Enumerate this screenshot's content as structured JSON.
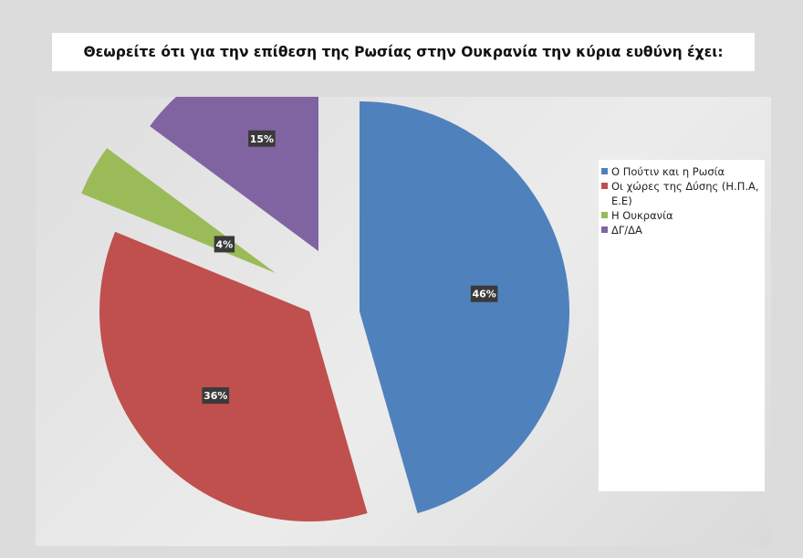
{
  "chart_data": {
    "type": "pie",
    "title": "Θεωρείτε ότι για την επίθεση της Ρωσίας στην Ουκρανία την κύρια ευθύνη έχει:",
    "slices": [
      {
        "label": "Ο Πούτιν και η Ρωσία",
        "value": 46,
        "display": "46%",
        "color": "#4f81bd"
      },
      {
        "label": "Οι χώρες της Δύσης (Η.Π.Α, Ε.Ε)",
        "value": 36,
        "display": "36%",
        "color": "#c0504d"
      },
      {
        "label": "Η Ουκρανία",
        "value": 4,
        "display": "4%",
        "color": "#9bbb59"
      },
      {
        "label": "ΔΓ/ΔΑ",
        "value": 15,
        "display": "15%",
        "color": "#8064a2"
      }
    ],
    "legend_position": "right",
    "exploded": true
  }
}
